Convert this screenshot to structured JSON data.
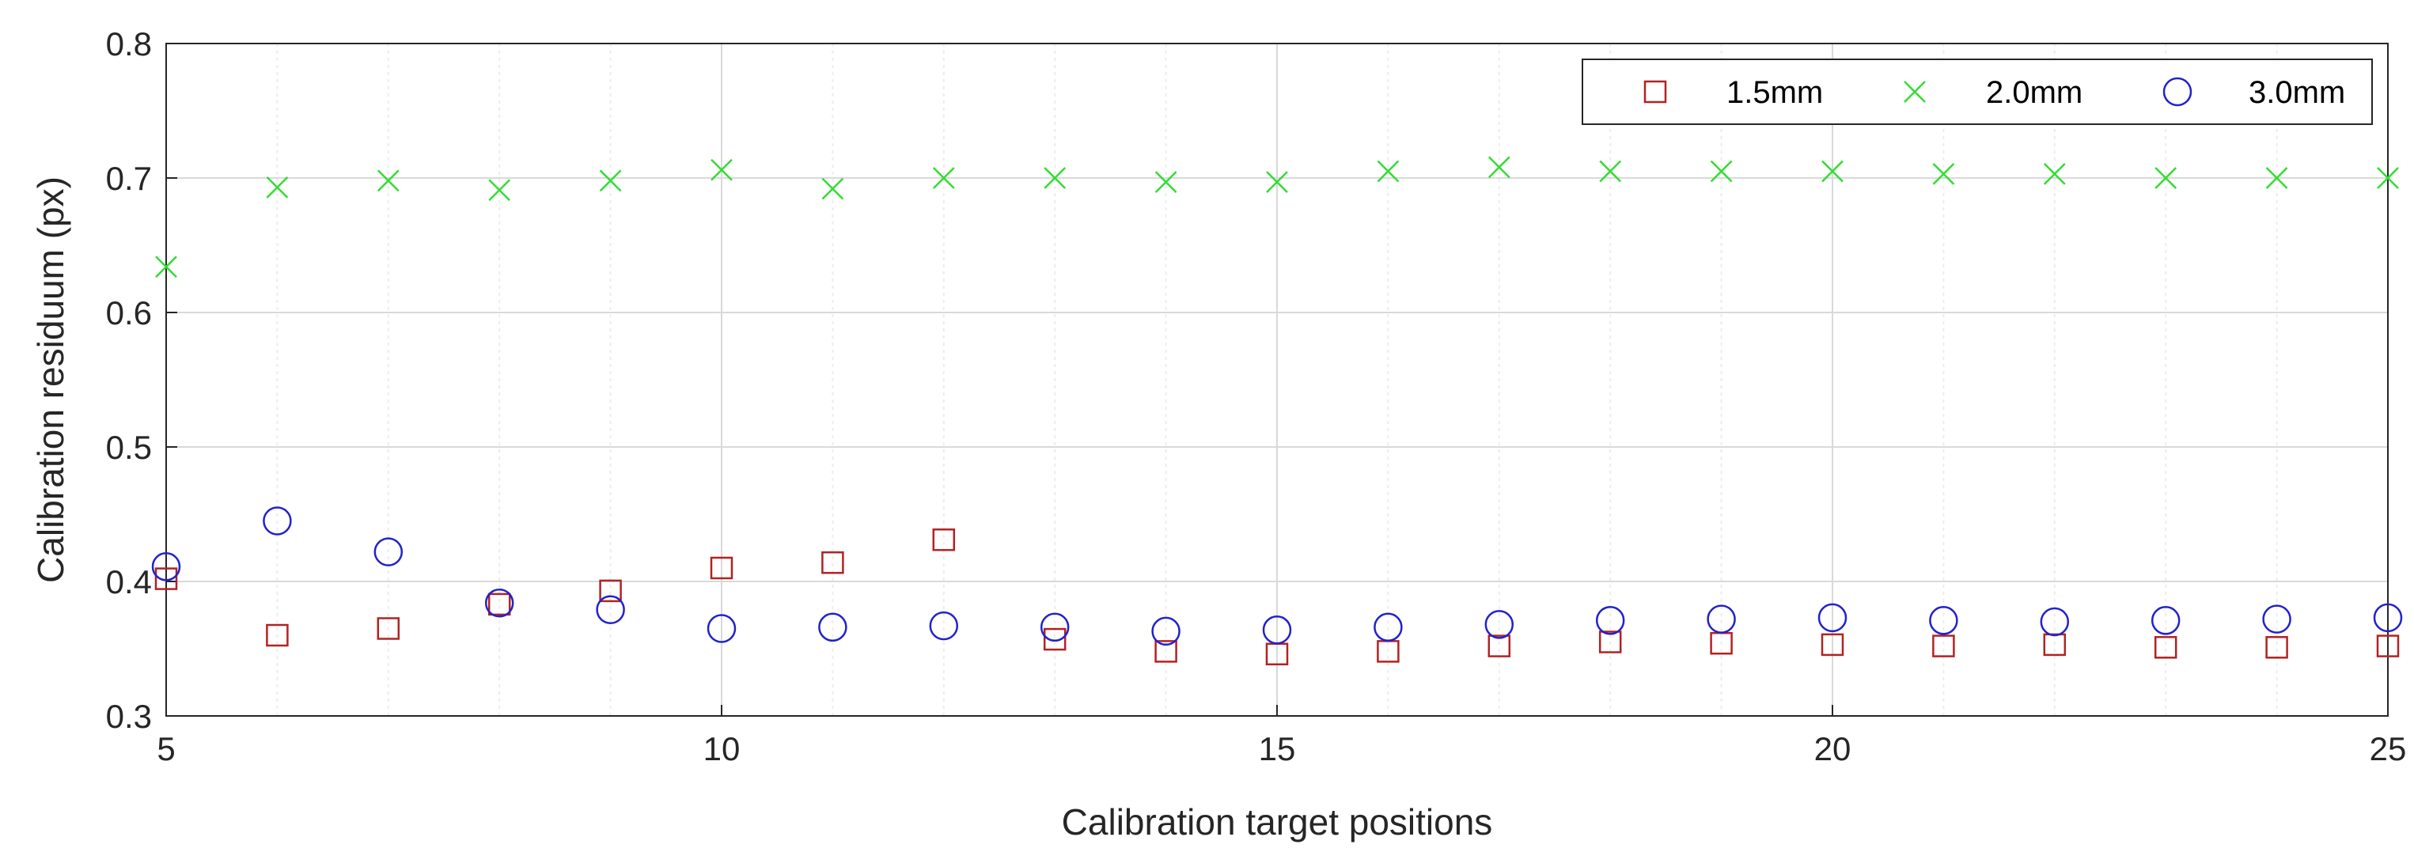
{
  "chart_data": {
    "type": "scatter",
    "title": "",
    "xlabel": "Calibration target positions",
    "ylabel": "Calibration residuum (px)",
    "xlim": [
      5,
      25
    ],
    "ylim": [
      0.3,
      0.8
    ],
    "grid": true,
    "legend_position": "top-right",
    "x": [
      5,
      6,
      7,
      8,
      9,
      10,
      11,
      12,
      13,
      14,
      15,
      16,
      17,
      18,
      19,
      20,
      21,
      22,
      23,
      24,
      25
    ],
    "x_ticks": [
      "5",
      "10",
      "15",
      "20",
      "25"
    ],
    "x_tick_values": [
      5,
      10,
      15,
      20,
      25
    ],
    "y_ticks": [
      "0.3",
      "0.4",
      "0.5",
      "0.6",
      "0.7",
      "0.8"
    ],
    "y_tick_values": [
      0.3,
      0.4,
      0.5,
      0.6,
      0.7,
      0.8
    ],
    "series": [
      {
        "name": "1.5mm",
        "marker": "square",
        "color": "#b22222",
        "values": [
          0.402,
          0.36,
          0.365,
          0.383,
          0.393,
          0.41,
          0.414,
          0.431,
          0.357,
          0.348,
          0.346,
          0.348,
          0.352,
          0.355,
          0.354,
          0.353,
          0.352,
          0.353,
          0.351,
          0.351,
          0.352
        ]
      },
      {
        "name": "2.0mm",
        "marker": "x",
        "color": "#33dd33",
        "values": [
          0.634,
          0.693,
          0.698,
          0.691,
          0.698,
          0.706,
          0.692,
          0.7,
          0.7,
          0.697,
          0.697,
          0.705,
          0.708,
          0.705,
          0.705,
          0.705,
          0.703,
          0.703,
          0.7,
          0.7,
          0.7
        ]
      },
      {
        "name": "3.0mm",
        "marker": "circle",
        "color": "#2222cc",
        "values": [
          0.411,
          0.445,
          0.422,
          0.384,
          0.379,
          0.365,
          0.366,
          0.367,
          0.366,
          0.363,
          0.364,
          0.366,
          0.368,
          0.371,
          0.372,
          0.373,
          0.371,
          0.37,
          0.371,
          0.372,
          0.373
        ]
      }
    ]
  }
}
